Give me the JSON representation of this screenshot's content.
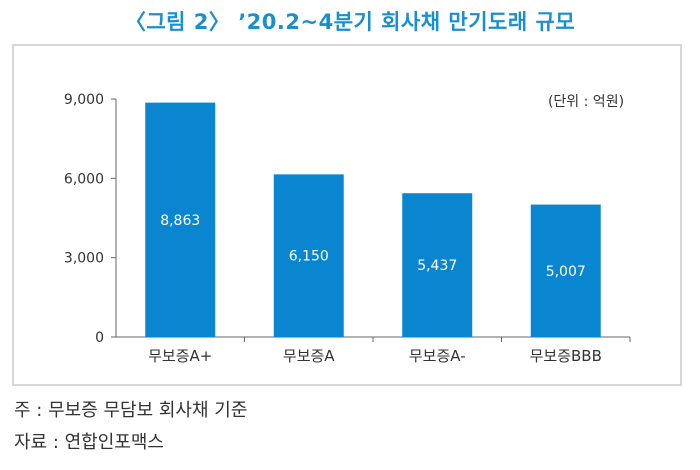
{
  "title": "〈그림 2〉 ’20.2~4분기 회사채 만기도래 규모",
  "unit_note": "(단위 : 억원)",
  "notes": {
    "source_note": "주 : 무보증 무담보 회사채 기준",
    "data_source": "자료 : 연합인포맥스"
  },
  "chart_data": {
    "type": "bar",
    "categories": [
      "무보증A+",
      "무보증A",
      "무보증A-",
      "무보증BBB"
    ],
    "values": [
      8863,
      6150,
      5437,
      5007
    ],
    "value_labels": [
      "8,863",
      "6,150",
      "5,437",
      "5,007"
    ],
    "yticks": [
      0,
      3000,
      6000,
      9000
    ],
    "ytick_labels": [
      "0",
      "3,000",
      "6,000",
      "9,000"
    ],
    "ylim": [
      0,
      9000
    ],
    "bar_color": "#0a86d0",
    "grid": false,
    "legend": false
  }
}
